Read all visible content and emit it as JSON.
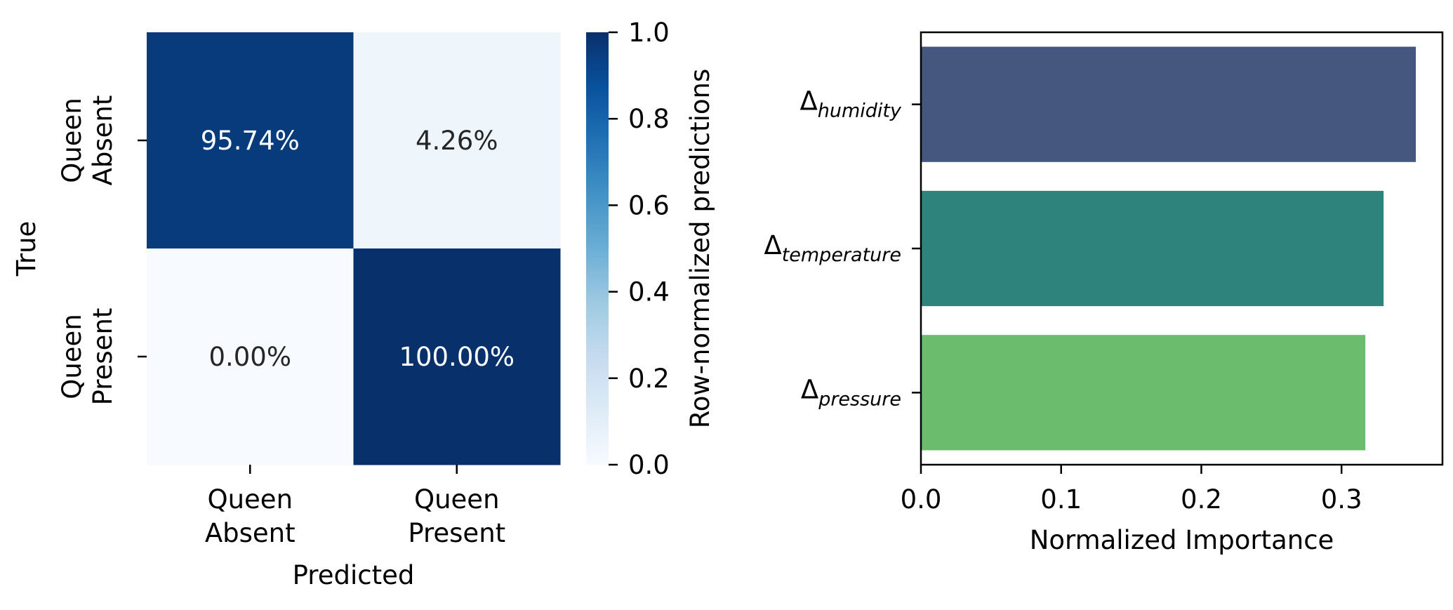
{
  "chart_data": [
    {
      "type": "heatmap",
      "xlabel": "Predicted",
      "ylabel": "True",
      "x_categories": [
        [
          "Queen",
          "Absent"
        ],
        [
          "Queen",
          "Present"
        ]
      ],
      "y_categories": [
        [
          "Queen",
          "Absent"
        ],
        [
          "Queen",
          "Present"
        ]
      ],
      "values": [
        [
          0.9574,
          0.0426
        ],
        [
          0.0,
          1.0
        ]
      ],
      "annotations": [
        [
          "95.74%",
          "4.26%"
        ],
        [
          "0.00%",
          "100.00%"
        ]
      ],
      "colormap": "Blues",
      "colorbar": {
        "label": "Row-normalized predictions",
        "range": [
          0.0,
          1.0
        ],
        "ticks": [
          "0.0",
          "0.2",
          "0.4",
          "0.6",
          "0.8",
          "1.0"
        ]
      }
    },
    {
      "type": "bar",
      "orientation": "horizontal",
      "categories": [
        {
          "symbol": "Δ",
          "subscript": "humidity"
        },
        {
          "symbol": "Δ",
          "subscript": "temperature"
        },
        {
          "symbol": "Δ",
          "subscript": "pressure"
        }
      ],
      "values": [
        0.353,
        0.33,
        0.317
      ],
      "colors": [
        "#46577f",
        "#2e847d",
        "#6bbc6d"
      ],
      "xlabel": "Normalized Importance",
      "xlim": [
        0.0,
        0.372
      ],
      "xticks": [
        "0.0",
        "0.1",
        "0.2",
        "0.3"
      ]
    }
  ]
}
